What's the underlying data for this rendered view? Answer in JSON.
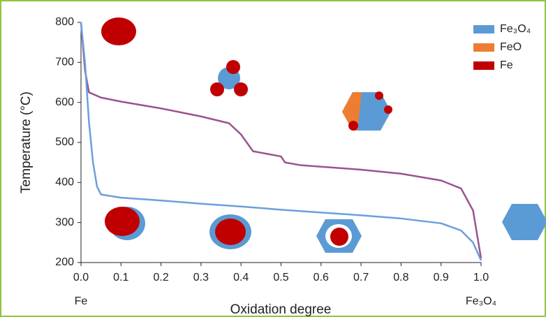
{
  "chart_data": {
    "type": "line",
    "xlabel": "Oxidation degree",
    "ylabel": "Temperature (°C)",
    "xlim": [
      0,
      1
    ],
    "ylim": [
      200,
      800
    ],
    "xticks": [
      {
        "value": 0,
        "label": "0.0"
      },
      0.1,
      0.2,
      0.3,
      0.4,
      0.5,
      0.6,
      0.7,
      0.8,
      0.9,
      {
        "value": 1,
        "label": "1.0"
      }
    ],
    "yticks": [
      200,
      300,
      400,
      500,
      600,
      700,
      800
    ],
    "annotations": [
      "Fe",
      "Fe₃O₄"
    ],
    "legend": [
      {
        "name": "Fe₃O₄",
        "color": "#5b9bd5"
      },
      {
        "name": "FeO",
        "color": "#ed7d31"
      },
      {
        "name": "Fe",
        "color": "#c00000"
      }
    ],
    "legend_position": "upper right",
    "series": [
      {
        "color": "#9a5390",
        "x": [
          0,
          0.01,
          0.02,
          0.05,
          0.1,
          0.2,
          0.3,
          0.37,
          0.4,
          0.43,
          0.5,
          0.51,
          0.55,
          0.7,
          0.8,
          0.9,
          0.95,
          0.98,
          1.0
        ],
        "values": [
          800,
          680,
          625,
          612,
          602,
          585,
          565,
          548,
          520,
          478,
          465,
          450,
          443,
          432,
          422,
          405,
          385,
          330,
          210
        ]
      },
      {
        "color": "#6c9fdc",
        "x": [
          0,
          0.01,
          0.02,
          0.03,
          0.04,
          0.05,
          0.1,
          0.2,
          0.3,
          0.4,
          0.5,
          0.6,
          0.7,
          0.8,
          0.9,
          0.95,
          0.98,
          1.0
        ],
        "values": [
          800,
          700,
          550,
          450,
          390,
          370,
          362,
          355,
          347,
          340,
          332,
          325,
          318,
          310,
          298,
          280,
          250,
          205
        ]
      }
    ]
  }
}
